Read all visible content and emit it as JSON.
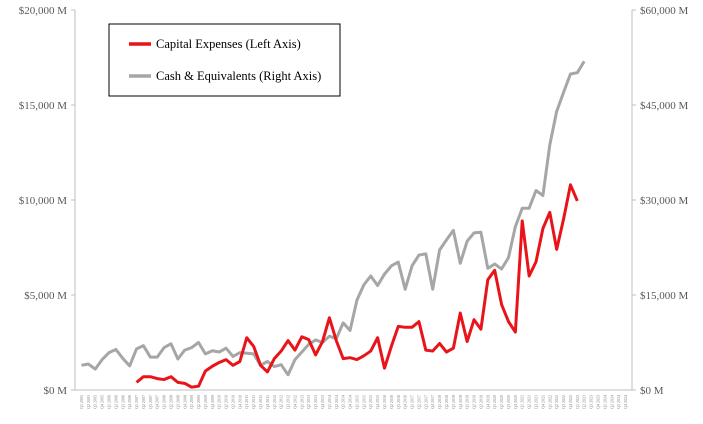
{
  "chart_data": {
    "type": "line",
    "title": "",
    "xlabel": "",
    "ylabel": "",
    "legend_position": "top-left (boxed)",
    "grid": false,
    "x": [
      "Q1 2005",
      "Q2 2005",
      "Q3 2005",
      "Q4 2005",
      "Q1 2006",
      "Q2 2006",
      "Q3 2006",
      "Q4 2006",
      "Q1 2007",
      "Q2 2007",
      "Q3 2007",
      "Q4 2007",
      "Q1 2008",
      "Q2 2008",
      "Q3 2008",
      "Q4 2008",
      "Q1 2009",
      "Q2 2009",
      "Q3 2009",
      "Q4 2009",
      "Q1 2010",
      "Q2 2010",
      "Q3 2010",
      "Q4 2010",
      "Q1 2011",
      "Q2 2011",
      "Q3 2011",
      "Q4 2011",
      "Q1 2012",
      "Q2 2012",
      "Q3 2012",
      "Q4 2012",
      "Q1 2013",
      "Q2 2013",
      "Q3 2013",
      "Q4 2013",
      "Q1 2014",
      "Q2 2014",
      "Q3 2014",
      "Q4 2014",
      "Q1 2015",
      "Q2 2015",
      "Q3 2015",
      "Q4 2015",
      "Q1 2016",
      "Q2 2016",
      "Q3 2016",
      "Q4 2016",
      "Q1 2017",
      "Q2 2017",
      "Q3 2017",
      "Q4 2017",
      "Q1 2018",
      "Q2 2018",
      "Q3 2018",
      "Q4 2018",
      "Q1 2019",
      "Q2 2019",
      "Q3 2019",
      "Q4 2019",
      "Q1 2020",
      "Q2 2020",
      "Q3 2020",
      "Q4 2020",
      "Q1 2021",
      "Q2 2021",
      "Q3 2021",
      "Q4 2021",
      "Q1 2022",
      "Q2 2022",
      "Q3 2022",
      "Q4 2022",
      "Q1 2023",
      "Q2 2023",
      "Q3 2023",
      "Q4 2023",
      "Q1 2024",
      "Q2 2024",
      "Q3 2024",
      "Q4 2024"
    ],
    "y_left": {
      "ylim": [
        0,
        20000
      ],
      "ticks": [
        0,
        5000,
        10000,
        15000,
        20000
      ],
      "tick_labels": [
        "$0 M",
        "$5,000 M",
        "$10,000 M",
        "$15,000 M",
        "$20,000 M"
      ]
    },
    "y_right": {
      "ylim": [
        0,
        60000
      ],
      "ticks": [
        0,
        15000,
        30000,
        45000,
        60000
      ],
      "tick_labels": [
        "$0 M",
        "$15,000 M",
        "$30,000 M",
        "$45,000 M",
        "$60,000 M"
      ]
    },
    "series": [
      {
        "name": "Capital Expenses (Left Axis)",
        "axis": "left",
        "color": "#e8141a",
        "values": [
          null,
          null,
          null,
          null,
          null,
          null,
          null,
          null,
          null,
          null,
          null,
          null,
          null,
          null,
          null,
          null,
          null,
          null,
          null,
          null,
          null,
          null,
          null,
          null,
          null,
          null,
          null,
          null,
          null,
          null,
          null,
          null,
          null,
          null,
          null,
          null,
          null,
          null,
          null,
          null,
          null,
          null,
          null,
          null,
          null,
          null,
          null,
          null,
          null,
          null,
          null,
          null,
          null,
          null,
          null,
          null,
          null,
          null,
          null,
          null,
          null,
          null,
          null,
          null,
          null,
          null,
          null,
          null,
          null,
          null,
          null,
          null,
          null,
          null,
          null,
          null,
          null,
          null,
          null,
          null
        ]
      },
      {
        "name": "Cash & Equivalents (Right Axis)",
        "axis": "right",
        "color": "#a6a6a6",
        "values": [
          null,
          null,
          null,
          null,
          null,
          null,
          null,
          null,
          null,
          null,
          null,
          null,
          null,
          null,
          null,
          null,
          null,
          null,
          null,
          null,
          null,
          null,
          null,
          null,
          null,
          null,
          null,
          null,
          null,
          null,
          null,
          null,
          null,
          null,
          null,
          null,
          null,
          null,
          null,
          null,
          null,
          null,
          null,
          null,
          null,
          null,
          null,
          null,
          null,
          null,
          null,
          null,
          null,
          null,
          null,
          null,
          null,
          null,
          null,
          null,
          null,
          null,
          null,
          null,
          null,
          null,
          null,
          null,
          null,
          null,
          null,
          null,
          null,
          null,
          null,
          null,
          null,
          null,
          null,
          null
        ]
      }
    ]
  }
}
